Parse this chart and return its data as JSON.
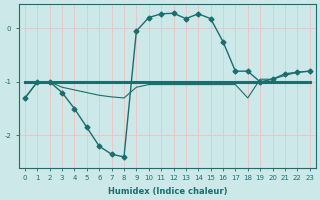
{
  "xlabel": "Humidex (Indice chaleur)",
  "background_color": "#cce8e8",
  "grid_color": "#e8c8c8",
  "line_color": "#1a6e6e",
  "x_ticks": [
    0,
    1,
    2,
    3,
    4,
    5,
    6,
    7,
    8,
    9,
    10,
    11,
    12,
    13,
    14,
    15,
    16,
    17,
    18,
    19,
    20,
    21,
    22,
    23
  ],
  "xlim": [
    -0.5,
    23.5
  ],
  "ylim": [
    -2.6,
    0.45
  ],
  "yticks": [
    0,
    -1,
    -2
  ],
  "curve1_x": [
    0,
    1,
    2,
    3,
    4,
    5,
    6,
    7,
    8,
    9,
    10,
    11,
    12,
    13,
    14,
    15,
    16,
    17,
    18,
    19,
    20,
    21,
    22,
    23
  ],
  "curve1_y": [
    -1.3,
    -1.0,
    -1.0,
    -1.2,
    -1.5,
    -1.85,
    -2.2,
    -2.35,
    -2.4,
    -0.05,
    0.2,
    0.27,
    0.28,
    0.18,
    0.27,
    0.18,
    -0.25,
    -0.8,
    -0.8,
    -1.0,
    -0.95,
    -0.85,
    -0.82,
    -0.8
  ],
  "curve2_x": [
    0,
    1,
    2,
    3,
    4,
    5,
    6,
    7,
    8,
    9,
    10,
    11,
    12,
    13,
    14,
    15,
    16,
    17,
    18,
    19,
    20,
    21,
    22,
    23
  ],
  "curve2_y": [
    -1.0,
    -1.0,
    -1.0,
    -1.0,
    -1.0,
    -1.0,
    -1.0,
    -1.0,
    -1.0,
    -1.0,
    -1.0,
    -1.0,
    -1.0,
    -1.0,
    -1.0,
    -1.0,
    -1.0,
    -1.0,
    -1.0,
    -1.0,
    -1.0,
    -1.0,
    -1.0,
    -1.0
  ],
  "curve3_x": [
    0,
    1,
    2,
    3,
    4,
    5,
    6,
    7,
    8,
    9,
    10,
    11,
    12,
    13,
    14,
    15,
    16,
    17,
    18,
    19,
    20,
    21,
    22,
    23
  ],
  "curve3_y": [
    -1.3,
    -1.0,
    -1.0,
    -1.1,
    -1.15,
    -1.2,
    -1.25,
    -1.28,
    -1.3,
    -1.1,
    -1.05,
    -1.05,
    -1.05,
    -1.05,
    -1.05,
    -1.05,
    -1.05,
    -1.05,
    -1.3,
    -0.95,
    -0.95,
    -0.88,
    -0.82,
    -0.8
  ]
}
